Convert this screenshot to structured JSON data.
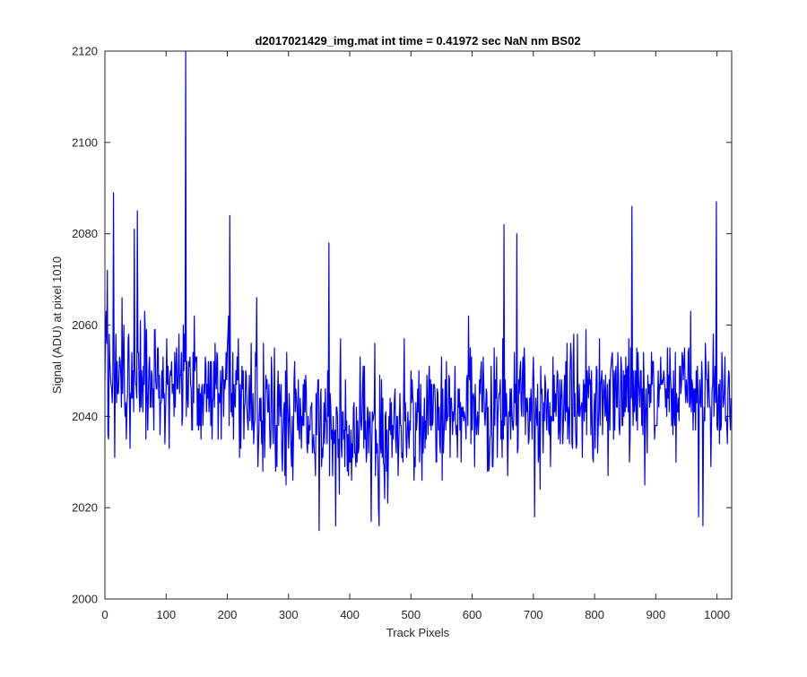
{
  "chart_data": {
    "type": "line",
    "title": "d2017021429_img.mat int time = 0.41972 sec  NaN nm BS02",
    "xlabel": "Track Pixels",
    "ylabel": "Signal (ADU) at pixel 1010",
    "xlim": [
      0,
      1024
    ],
    "ylim": [
      2000,
      2120
    ],
    "xticks": [
      0,
      100,
      200,
      300,
      400,
      500,
      600,
      700,
      800,
      900,
      1000
    ],
    "yticks": [
      2000,
      2020,
      2040,
      2060,
      2080,
      2100,
      2120
    ],
    "grid": false,
    "box": true,
    "series": [
      {
        "color": "#0000ff",
        "note_values": "1024 samples, approximated from the plot",
        "x": [],
        "y": []
      }
    ]
  }
}
